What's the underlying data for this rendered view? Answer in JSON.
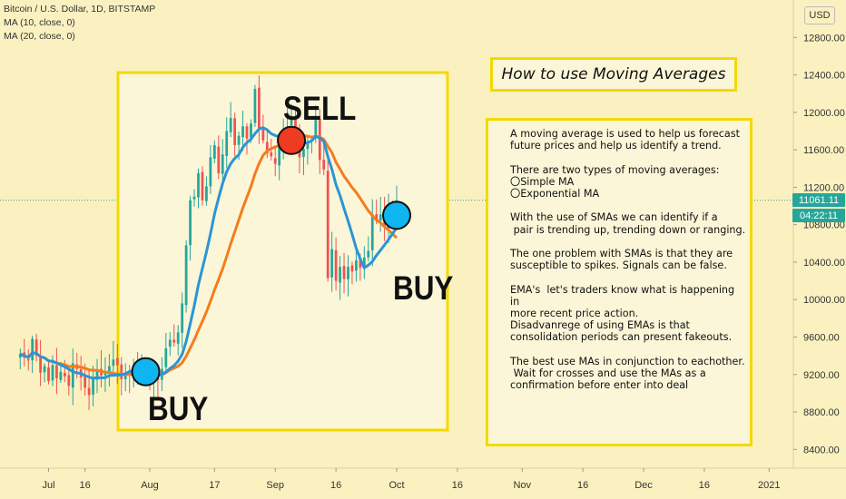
{
  "legend": {
    "symbol_line": "Bitcoin / U.S. Dollar, 1D, BITSTAMP",
    "ma1": "MA (10, close, 0)",
    "ma2": "MA (20, close, 0)"
  },
  "currency_button": "USD",
  "price_tags": {
    "last_price": "11061.11",
    "countdown": "04:22:11",
    "last_color": "#26a69a",
    "countdown_color": "#26a69a"
  },
  "annotation_labels": {
    "sell": "SELL",
    "buy_left": "BUY",
    "buy_right": "BUY"
  },
  "info_panel": {
    "title": "How to use Moving Averages",
    "paragraphs": [
      [
        "A moving average is used to help us forecast",
        "future prices and help us identify a trend."
      ],
      [
        "There are two types of moving averages:",
        "〇Simple MA",
        "〇Exponential MA"
      ],
      [
        "With the use of SMAs we can identify if a",
        " pair is trending up, trending down or ranging."
      ],
      [
        "The one problem with SMAs is that they are",
        "susceptible to spikes. Signals can be false."
      ],
      [
        "EMA's  let's traders know what is happening in",
        "more recent price action.",
        "Disadvanrege of using EMAs is that",
        "consolidation periods can present fakeouts."
      ],
      [
        "The best use MAs in conjunction to eachother.",
        " Wait for crosses and use the MAs as a",
        "confirmation before enter into deal"
      ]
    ]
  },
  "colors": {
    "background": "#fbf1c0",
    "up_candle": "#26a69a",
    "down_candle": "#ef5350",
    "ma10": "#2a95d6",
    "ma20": "#f57c1f",
    "highlight_border": "#f3d900",
    "buy_marker": "#0fb5f0",
    "sell_marker": "#ef3b22",
    "price_line": "#26a69a"
  },
  "chart_data": {
    "type": "candlestick",
    "symbol": "Bitcoin / U.S. Dollar, 1D, BITSTAMP",
    "ylim": [
      8200,
      13200
    ],
    "yticks": [
      8400,
      8800,
      9200,
      9600,
      10000,
      10400,
      10800,
      11200,
      11600,
      12000,
      12400,
      12800
    ],
    "y_tick_labels": [
      "8400.00",
      "8800.00",
      "9200.00",
      "9600.00",
      "10000.00",
      "10400.00",
      "10800.00",
      "11200.00",
      "11600.00",
      "12000.00",
      "12400.00",
      "12800.00"
    ],
    "x_tick_labels": [
      {
        "label": "Jul",
        "day": 7
      },
      {
        "label": "16",
        "day": 16
      },
      {
        "label": "Aug",
        "day": 32
      },
      {
        "label": "17",
        "day": 48
      },
      {
        "label": "Sep",
        "day": 63
      },
      {
        "label": "16",
        "day": 78
      },
      {
        "label": "Oct",
        "day": 93
      },
      {
        "label": "16",
        "day": 108
      },
      {
        "label": "Nov",
        "day": 124
      },
      {
        "label": "16",
        "day": 139
      },
      {
        "label": "Dec",
        "day": 154
      },
      {
        "label": "16",
        "day": 169
      },
      {
        "label": "2021",
        "day": 185
      }
    ],
    "x_range_days": [
      -5,
      191
    ],
    "last_price": 11061.11,
    "close": [
      9420,
      9380,
      9350,
      9580,
      9400,
      9220,
      9290,
      9130,
      9300,
      9160,
      9230,
      9180,
      9080,
      9320,
      9260,
      9170,
      9060,
      8980,
      9150,
      9250,
      9190,
      9210,
      9290,
      9360,
      9300,
      9150,
      9220,
      9200,
      9240,
      9170,
      9230,
      9210,
      9160,
      9190,
      9140,
      9260,
      9480,
      9570,
      9540,
      9650,
      9960,
      10580,
      11060,
      11100,
      11350,
      11060,
      11210,
      11520,
      11650,
      11350,
      11550,
      11800,
      11940,
      11650,
      11750,
      11850,
      11720,
      11880,
      12250,
      11830,
      11700,
      11560,
      11530,
      11450,
      11650,
      11760,
      11850,
      11920,
      11810,
      11520,
      11610,
      11680,
      11710,
      11920,
      11490,
      11390,
      10230,
      10540,
      10200,
      10350,
      10220,
      10350,
      10300,
      10420,
      10340,
      10450,
      10520,
      10910,
      10860,
      10910,
      10780,
      10940,
      10920,
      11061.11
    ],
    "buy_signals": [
      {
        "day": 31,
        "price": 9230
      },
      {
        "day": 93,
        "price": 10900
      }
    ],
    "sell_signals": [
      {
        "day": 67,
        "price": 11700
      }
    ],
    "series": [
      {
        "name": "MA (10, close, 0)",
        "type": "sma",
        "period": 10
      },
      {
        "name": "MA (20, close, 0)",
        "type": "sma",
        "period": 20
      }
    ]
  }
}
